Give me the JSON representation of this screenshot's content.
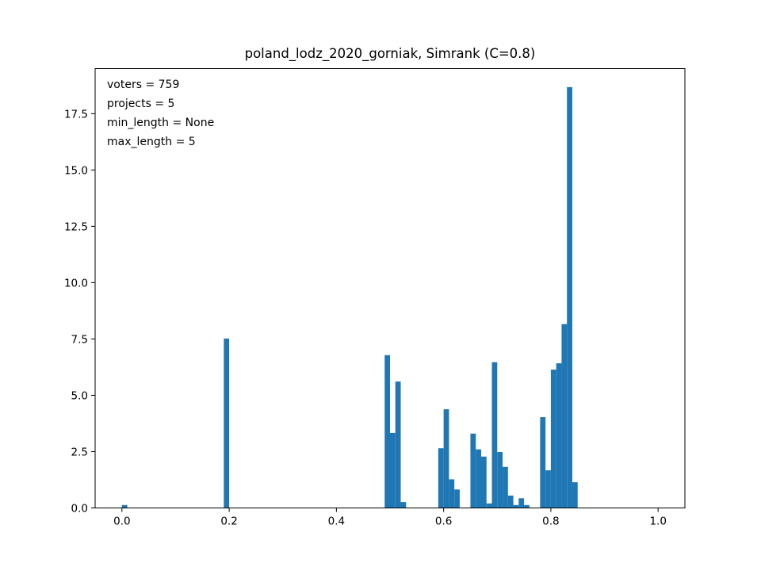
{
  "chart_data": {
    "type": "bar",
    "title": "poland_lodz_2020_gorniak, Simrank (C=0.8)",
    "xlabel": "",
    "ylabel": "",
    "xlim": [
      -0.05,
      1.05
    ],
    "ylim": [
      0,
      19.5
    ],
    "bin_width": 0.01,
    "xticks": [
      0.0,
      0.2,
      0.4,
      0.6,
      0.8,
      1.0
    ],
    "xtick_labels": [
      "0.0",
      "0.2",
      "0.4",
      "0.6",
      "0.8",
      "1.0"
    ],
    "yticks": [
      0.0,
      2.5,
      5.0,
      7.5,
      10.0,
      12.5,
      15.0,
      17.5
    ],
    "ytick_labels": [
      "0.0",
      "2.5",
      "5.0",
      "7.5",
      "10.0",
      "12.5",
      "15.0",
      "17.5"
    ],
    "bar_color": "#1f77b4",
    "grid": false,
    "bins": [
      {
        "x": 0.0,
        "value": 0.13
      },
      {
        "x": 0.19,
        "value": 7.52
      },
      {
        "x": 0.49,
        "value": 6.78
      },
      {
        "x": 0.5,
        "value": 3.33
      },
      {
        "x": 0.51,
        "value": 5.61
      },
      {
        "x": 0.52,
        "value": 0.26
      },
      {
        "x": 0.59,
        "value": 2.65
      },
      {
        "x": 0.6,
        "value": 4.38
      },
      {
        "x": 0.61,
        "value": 1.27
      },
      {
        "x": 0.62,
        "value": 0.82
      },
      {
        "x": 0.65,
        "value": 3.3
      },
      {
        "x": 0.66,
        "value": 2.6
      },
      {
        "x": 0.67,
        "value": 2.28
      },
      {
        "x": 0.68,
        "value": 0.2
      },
      {
        "x": 0.69,
        "value": 6.47
      },
      {
        "x": 0.7,
        "value": 2.48
      },
      {
        "x": 0.71,
        "value": 1.82
      },
      {
        "x": 0.72,
        "value": 0.55
      },
      {
        "x": 0.73,
        "value": 0.13
      },
      {
        "x": 0.74,
        "value": 0.43
      },
      {
        "x": 0.75,
        "value": 0.13
      },
      {
        "x": 0.78,
        "value": 4.03
      },
      {
        "x": 0.79,
        "value": 1.67
      },
      {
        "x": 0.8,
        "value": 6.14
      },
      {
        "x": 0.81,
        "value": 6.42
      },
      {
        "x": 0.82,
        "value": 8.16
      },
      {
        "x": 0.83,
        "value": 18.68
      },
      {
        "x": 0.84,
        "value": 1.14
      }
    ],
    "annotations": [
      "voters = 759",
      "projects = 5",
      "min_length = None",
      "max_length = 5"
    ]
  }
}
